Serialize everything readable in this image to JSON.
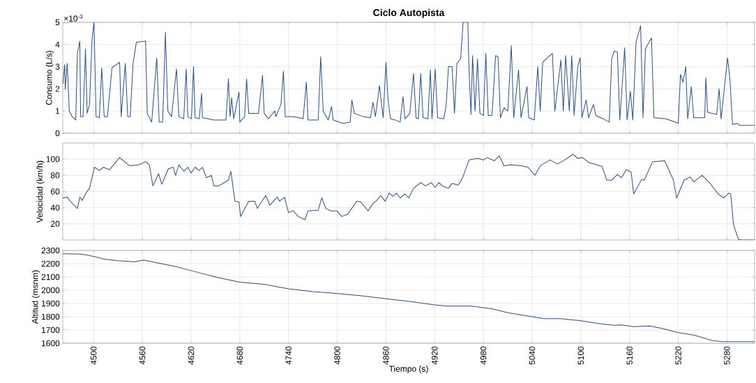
{
  "chart_data": [
    {
      "type": "line",
      "title": "Ciclo Autopista",
      "ylabel": "Consumo (L/s)",
      "annotations": [
        "×10$^{-3}$"
      ],
      "color": "#24508f",
      "grid": true,
      "tick_labels": "y",
      "xlim": [
        4462,
        5314
      ],
      "xticks": [
        4500,
        4560,
        4620,
        4680,
        4740,
        4800,
        4860,
        4920,
        4980,
        5040,
        5100,
        5160,
        5220,
        5280
      ],
      "ylim": [
        0,
        5
      ],
      "yticks": [
        0,
        1,
        2,
        3,
        4,
        5
      ],
      "x": [
        4462,
        4464.4,
        4465,
        4467.5,
        4470,
        4473.6,
        4478,
        4480,
        4483,
        4484,
        4487,
        4490,
        4492,
        4495,
        4498,
        4500.5,
        4503,
        4507,
        4510,
        4513,
        4517,
        4522.6,
        4532,
        4534,
        4539,
        4542,
        4545,
        4548.6,
        4552.6,
        4564,
        4566,
        4571.5,
        4577.7,
        4580.7,
        4585,
        4588.4,
        4591.4,
        4596,
        4602,
        4605,
        4611,
        4614,
        4616,
        4620.5,
        4623,
        4625,
        4630,
        4633,
        4634,
        4648,
        4663,
        4666,
        4668,
        4670,
        4672.5,
        4679,
        4680,
        4686,
        4688.4,
        4691,
        4703,
        4708,
        4710,
        4715,
        4723,
        4724.5,
        4730.7,
        4733.7,
        4736,
        4746,
        4753.6,
        4758,
        4762,
        4764,
        4776.6,
        4779.6,
        4782.7,
        4789,
        4793,
        4795,
        4807,
        4816,
        4818,
        4821,
        4832,
        4841,
        4844,
        4847,
        4852,
        4856.6,
        4860,
        4862.6,
        4865.6,
        4871.5,
        4877.5,
        4881,
        4883.4,
        4889.4,
        4894,
        4897,
        4900,
        4902.8,
        4905.7,
        4911.7,
        4914.7,
        4916.7,
        4920.6,
        4923.6,
        4931,
        4934,
        4937,
        4941.4,
        4944.4,
        4947.4,
        4952,
        4955,
        4960.8,
        4962.3,
        4964.7,
        4966.7,
        4969.7,
        4972.7,
        4975.7,
        4980,
        4983,
        4986,
        4990.6,
        4995,
        4998,
        5001,
        5005.4,
        5010,
        5014.4,
        5017.3,
        5023.3,
        5026.3,
        5033.7,
        5035.8,
        5042.6,
        5047,
        5050,
        5053,
        5065,
        5068,
        5075.4,
        5078.4,
        5081.3,
        5085.8,
        5088.8,
        5091.7,
        5096.2,
        5099.2,
        5101.3,
        5106.6,
        5109.6,
        5115.5,
        5118.5,
        5127.5,
        5135,
        5138,
        5141,
        5145,
        5148,
        5154,
        5157,
        5161,
        5164,
        5168,
        5173.6,
        5176.6,
        5179.5,
        5187,
        5190,
        5205,
        5220,
        5222.7,
        5225.7,
        5229.2,
        5231.6,
        5236,
        5239,
        5252.5,
        5254,
        5256,
        5267.3,
        5270.3,
        5272.7,
        5280.7,
        5283.7,
        5286.7,
        5292.6,
        5295.6,
        5307.2,
        5314
      ],
      "values": [
        2.2,
        3.1,
        2,
        3.15,
        1,
        0.75,
        0.6,
        3.6,
        4.15,
        0.75,
        0.75,
        3.8,
        0.9,
        1.3,
        4.2,
        5,
        0.75,
        0.7,
        2.95,
        0.75,
        0.75,
        2.95,
        3.2,
        0.75,
        3.15,
        0.75,
        0.75,
        3.15,
        4.1,
        4.15,
        0.9,
        0.5,
        3.4,
        0.5,
        0.5,
        4.55,
        1,
        0.75,
        2.9,
        0.75,
        0.65,
        2.9,
        0.75,
        0.65,
        3,
        0.7,
        0.65,
        1.8,
        0.7,
        0.6,
        0.6,
        2.45,
        0.75,
        1.6,
        0.65,
        1.85,
        0.5,
        0.75,
        2.45,
        0.9,
        0.9,
        2.6,
        0.9,
        0.65,
        1,
        0.75,
        1.3,
        2.8,
        0.75,
        0.75,
        0.7,
        0.65,
        2.3,
        0.6,
        0.6,
        3.45,
        1,
        0.6,
        1.2,
        0.6,
        0.45,
        0.5,
        1.5,
        0.9,
        0.75,
        0.7,
        1.4,
        0.75,
        2.15,
        0.7,
        3.2,
        1.5,
        0.65,
        0.6,
        0.5,
        1.65,
        0.65,
        0.9,
        2.7,
        0.7,
        0.65,
        2.7,
        0.7,
        0.65,
        2.85,
        0.65,
        2.9,
        0.7,
        0.65,
        1.2,
        3,
        3,
        0.9,
        3.15,
        3.35,
        5,
        5,
        2.9,
        0.85,
        3.5,
        1,
        3.35,
        0.9,
        0.8,
        3.6,
        0.8,
        0.8,
        3.5,
        3.45,
        0.7,
        1.15,
        1,
        3.95,
        0.7,
        2.85,
        0.7,
        2.1,
        0.7,
        0.6,
        3,
        1,
        3.2,
        3.6,
        1,
        3.3,
        1,
        3.5,
        1,
        3.5,
        0.8,
        3,
        3.4,
        0.7,
        1.5,
        0.7,
        1.3,
        0.8,
        0.65,
        0.5,
        3.35,
        3.7,
        3.65,
        0.6,
        3.85,
        0.6,
        1.9,
        0.6,
        4.1,
        4.85,
        0.7,
        3.8,
        4.3,
        0.7,
        0.65,
        0.45,
        2.65,
        2.3,
        3,
        0.65,
        2.1,
        0.7,
        0.7,
        2.5,
        0.95,
        0.85,
        2,
        0.65,
        3.4,
        2.4,
        0.4,
        0.45,
        0.35,
        0.35,
        0.35
      ]
    },
    {
      "type": "line",
      "ylabel": "Velocidad (km/h)",
      "color": "#24508f",
      "grid": true,
      "tick_labels": "y",
      "xlim": [
        4462,
        5314
      ],
      "xticks": [
        4500,
        4560,
        4620,
        4680,
        4740,
        4800,
        4860,
        4920,
        4980,
        5040,
        5100,
        5160,
        5220,
        5280
      ],
      "ylim": [
        0,
        120
      ],
      "yticks": [
        20,
        40,
        60,
        80,
        100
      ],
      "x": [
        4462,
        4467.5,
        4472,
        4480,
        4483,
        4486,
        4490.5,
        4495,
        4501,
        4507,
        4512,
        4519.5,
        4532,
        4538,
        4544,
        4556,
        4564,
        4568.6,
        4573,
        4580,
        4584,
        4592,
        4598,
        4601,
        4605,
        4611,
        4616,
        4620,
        4625,
        4630,
        4634,
        4639,
        4645,
        4648,
        4654,
        4666,
        4669,
        4674,
        4679,
        4681,
        4685,
        4691,
        4698.5,
        4701.6,
        4712,
        4717,
        4726,
        4729,
        4735,
        4740,
        4746,
        4752,
        4760,
        4764,
        4776.6,
        4781,
        4786,
        4792,
        4799.5,
        4805.6,
        4813,
        4824,
        4829,
        4838,
        4844,
        4847.7,
        4853.7,
        4859,
        4864,
        4868.5,
        4873,
        4877.5,
        4883.4,
        4888,
        4894,
        4902.8,
        4908.7,
        4916,
        4920.6,
        4925,
        4931,
        4937,
        4941.4,
        4949,
        4954.8,
        4962.3,
        4972.7,
        4980,
        4984.6,
        4993.5,
        4999.5,
        5005.4,
        5014.4,
        5026.3,
        5035,
        5043.5,
        5050,
        5062,
        5071,
        5080,
        5090.3,
        5096.2,
        5102,
        5109.6,
        5126,
        5132,
        5138,
        5145,
        5150,
        5156,
        5162,
        5165,
        5175,
        5178,
        5188.5,
        5203.3,
        5214,
        5218,
        5227.1,
        5234.6,
        5239,
        5249.5,
        5258.4,
        5269,
        5276.2,
        5282.2,
        5284.6,
        5288,
        5294,
        5297,
        5307.2,
        5314
      ],
      "values": [
        52,
        53,
        47,
        39,
        53,
        49,
        58,
        64,
        90,
        86,
        90,
        87,
        102,
        97,
        92,
        93,
        97,
        93,
        67,
        82,
        69,
        88,
        90,
        80,
        93,
        85,
        90,
        83,
        90,
        86,
        90,
        77,
        80,
        67,
        67,
        74,
        85,
        48,
        47,
        29,
        37,
        48,
        48,
        39,
        55,
        43,
        53,
        48,
        53,
        34,
        36,
        29,
        25,
        36,
        37,
        52,
        39,
        36,
        36,
        29,
        32,
        48,
        47,
        36,
        45,
        48,
        55,
        48,
        58,
        54,
        58,
        52,
        57,
        52,
        64,
        71,
        67,
        71,
        65,
        71,
        66,
        64,
        70,
        68,
        78,
        99,
        101,
        99,
        102,
        98,
        104,
        92,
        93,
        92,
        90,
        80,
        92,
        99,
        94,
        99,
        106,
        101,
        102,
        96,
        91,
        74,
        74,
        81,
        77,
        87,
        84,
        57,
        75,
        74,
        97,
        98,
        74,
        52,
        74,
        78,
        72,
        80,
        71,
        57,
        52,
        58,
        57,
        19,
        1,
        0,
        0,
        0
      ]
    },
    {
      "type": "line",
      "ylabel": "Altitud (msnm)",
      "xlabel": "Tiempo (s)",
      "color": "#24508f",
      "grid": true,
      "xlim": [
        4462,
        5314
      ],
      "xticks": [
        4500,
        4560,
        4620,
        4680,
        4740,
        4800,
        4860,
        4920,
        4980,
        5040,
        5100,
        5160,
        5220,
        5280
      ],
      "ylim": [
        1600,
        2300
      ],
      "yticks": [
        1600,
        1700,
        1800,
        1900,
        2000,
        2100,
        2200,
        2300
      ],
      "x": [
        4462,
        4485,
        4500,
        4512,
        4530,
        4550,
        4562,
        4575,
        4600,
        4620,
        4650,
        4680,
        4710,
        4740,
        4770,
        4800,
        4830,
        4860,
        4890,
        4920,
        4935,
        4965,
        4990,
        5010,
        5040,
        5055,
        5075,
        5100,
        5120,
        5140,
        5150,
        5165,
        5185,
        5200,
        5220,
        5240,
        5262,
        5275,
        5314
      ],
      "values": [
        2275,
        2272,
        2255,
        2235,
        2222,
        2215,
        2228,
        2210,
        2180,
        2148,
        2100,
        2060,
        2045,
        2010,
        1990,
        1975,
        1958,
        1935,
        1915,
        1890,
        1880,
        1880,
        1860,
        1830,
        1800,
        1785,
        1785,
        1770,
        1750,
        1735,
        1738,
        1725,
        1730,
        1712,
        1680,
        1660,
        1620,
        1612,
        1612
      ]
    }
  ]
}
